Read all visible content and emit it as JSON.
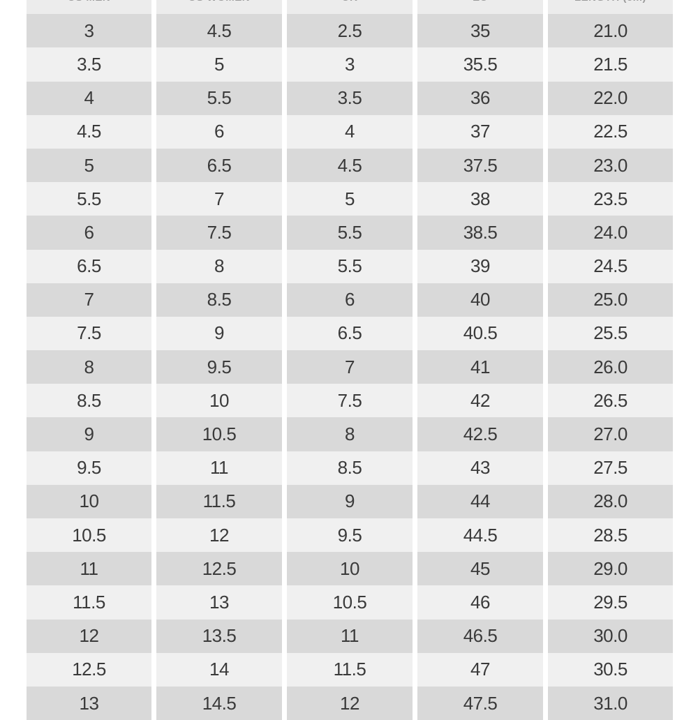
{
  "headers": [
    "US MEN",
    "US WOMEN",
    "UK",
    "EU",
    "LENGTH (cm)"
  ],
  "rows": [
    [
      "3",
      "4.5",
      "2.5",
      "35",
      "21.0"
    ],
    [
      "3.5",
      "5",
      "3",
      "35.5",
      "21.5"
    ],
    [
      "4",
      "5.5",
      "3.5",
      "36",
      "22.0"
    ],
    [
      "4.5",
      "6",
      "4",
      "37",
      "22.5"
    ],
    [
      "5",
      "6.5",
      "4.5",
      "37.5",
      "23.0"
    ],
    [
      "5.5",
      "7",
      "5",
      "38",
      "23.5"
    ],
    [
      "6",
      "7.5",
      "5.5",
      "38.5",
      "24.0"
    ],
    [
      "6.5",
      "8",
      "5.5",
      "39",
      "24.5"
    ],
    [
      "7",
      "8.5",
      "6",
      "40",
      "25.0"
    ],
    [
      "7.5",
      "9",
      "6.5",
      "40.5",
      "25.5"
    ],
    [
      "8",
      "9.5",
      "7",
      "41",
      "26.0"
    ],
    [
      "8.5",
      "10",
      "7.5",
      "42",
      "26.5"
    ],
    [
      "9",
      "10.5",
      "8",
      "42.5",
      "27.0"
    ],
    [
      "9.5",
      "11",
      "8.5",
      "43",
      "27.5"
    ],
    [
      "10",
      "11.5",
      "9",
      "44",
      "28.0"
    ],
    [
      "10.5",
      "12",
      "9.5",
      "44.5",
      "28.5"
    ],
    [
      "11",
      "12.5",
      "10",
      "45",
      "29.0"
    ],
    [
      "11.5",
      "13",
      "10.5",
      "46",
      "29.5"
    ],
    [
      "12",
      "13.5",
      "11",
      "46.5",
      "30.0"
    ],
    [
      "12.5",
      "14",
      "11.5",
      "47",
      "30.5"
    ],
    [
      "13",
      "14.5",
      "12",
      "47.5",
      "31.0"
    ]
  ],
  "colors": {
    "row_dark": "#d9d9d9",
    "row_light": "#f0f0f0",
    "header": "#ececec",
    "text": "#3a3a3a",
    "header_text": "#9a9a9a"
  }
}
